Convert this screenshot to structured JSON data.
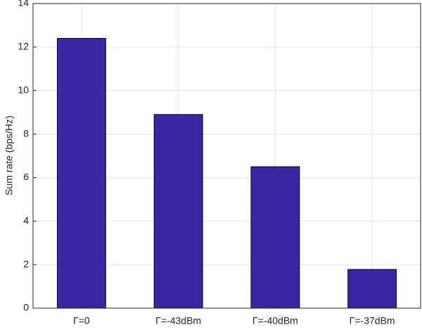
{
  "chart_data": {
    "type": "bar",
    "ylabel": "Sum rate (bps/Hz)",
    "categories": [
      "Γ=0",
      "Γ=-43dBm",
      "Γ=-40dBm",
      "Γ=-37dBm"
    ],
    "values": [
      12.4,
      8.9,
      6.5,
      1.78
    ],
    "color": "#3b27a6",
    "ylim": [
      0,
      14
    ],
    "yticks": [
      0,
      2,
      4,
      6,
      8,
      10,
      12,
      14
    ],
    "grid": true
  }
}
